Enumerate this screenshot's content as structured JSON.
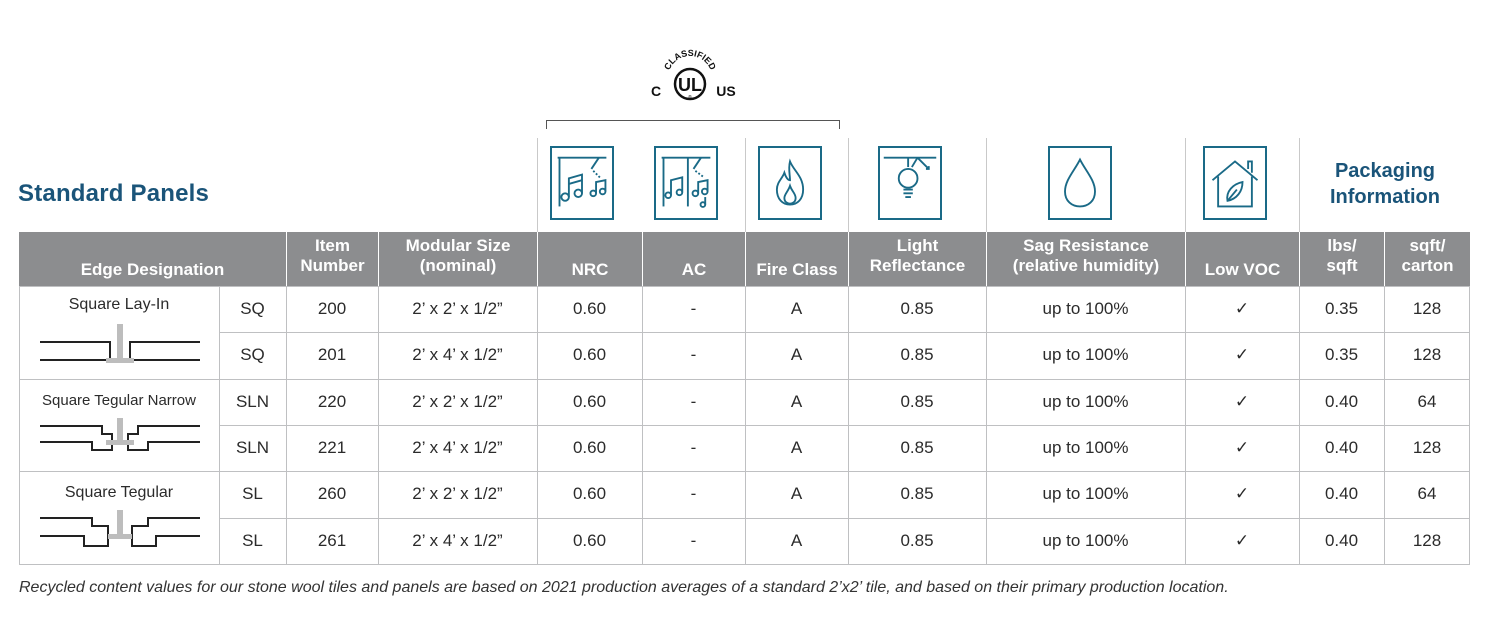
{
  "certification": {
    "top_text": "CLASSIFIED",
    "letters_left": "C",
    "mark": "UL",
    "letters_right": "US",
    "registered": "®"
  },
  "title": "Standard Panels",
  "packaging_title_line1": "Packaging",
  "packaging_title_line2": "Information",
  "icons": [
    {
      "name": "nrc-icon"
    },
    {
      "name": "ac-icon"
    },
    {
      "name": "fire-icon"
    },
    {
      "name": "light-reflectance-icon"
    },
    {
      "name": "water-drop-icon"
    },
    {
      "name": "low-voc-house-icon"
    }
  ],
  "headers": {
    "edge": "Edge Designation",
    "item_1": "Item",
    "item_2": "Number",
    "size_1": "Modular Size",
    "size_2": "(nominal)",
    "nrc": "NRC",
    "ac": "AC",
    "fire": "Fire Class",
    "light_1": "Light",
    "light_2": "Reflectance",
    "sag_1": "Sag Resistance",
    "sag_2": "(relative humidity)",
    "voc": "Low VOC",
    "lbs_1": "lbs/",
    "lbs_2": "sqft",
    "carton_1": "sqft/",
    "carton_2": "carton"
  },
  "edge_groups": [
    {
      "label": "Square Lay-In",
      "profile": "square-lay-in"
    },
    {
      "label": "Square Tegular Narrow",
      "profile": "square-tegular-narrow"
    },
    {
      "label": "Square Tegular",
      "profile": "square-tegular"
    }
  ],
  "rows": [
    {
      "code": "SQ",
      "item": "200",
      "size": "2’ x 2’ x 1/2”",
      "nrc": "0.60",
      "ac": "-",
      "fire": "A",
      "lr": "0.85",
      "sag": "up to 100%",
      "voc": "✓",
      "lbs": "0.35",
      "carton": "128"
    },
    {
      "code": "SQ",
      "item": "201",
      "size": "2’ x 4’ x 1/2”",
      "nrc": "0.60",
      "ac": "-",
      "fire": "A",
      "lr": "0.85",
      "sag": "up to 100%",
      "voc": "✓",
      "lbs": "0.35",
      "carton": "128"
    },
    {
      "code": "SLN",
      "item": "220",
      "size": "2’ x 2’ x 1/2”",
      "nrc": "0.60",
      "ac": "-",
      "fire": "A",
      "lr": "0.85",
      "sag": "up to 100%",
      "voc": "✓",
      "lbs": "0.40",
      "carton": "64"
    },
    {
      "code": "SLN",
      "item": "221",
      "size": "2’ x 4’ x 1/2”",
      "nrc": "0.60",
      "ac": "-",
      "fire": "A",
      "lr": "0.85",
      "sag": "up to 100%",
      "voc": "✓",
      "lbs": "0.40",
      "carton": "128"
    },
    {
      "code": "SL",
      "item": "260",
      "size": "2’ x 2’ x 1/2”",
      "nrc": "0.60",
      "ac": "-",
      "fire": "A",
      "lr": "0.85",
      "sag": "up to 100%",
      "voc": "✓",
      "lbs": "0.40",
      "carton": "64"
    },
    {
      "code": "SL",
      "item": "261",
      "size": "2’ x 4’ x 1/2”",
      "nrc": "0.60",
      "ac": "-",
      "fire": "A",
      "lr": "0.85",
      "sag": "up to 100%",
      "voc": "✓",
      "lbs": "0.40",
      "carton": "128"
    }
  ],
  "footnote": "Recycled content values for our stone wool tiles and panels are based on 2021 production averages of a standard 2’x2’ tile, and based on their primary production location.",
  "colors": {
    "brand_blue": "#1a5479",
    "icon_teal": "#1a6a87",
    "header_gray": "#8c8d8f"
  }
}
